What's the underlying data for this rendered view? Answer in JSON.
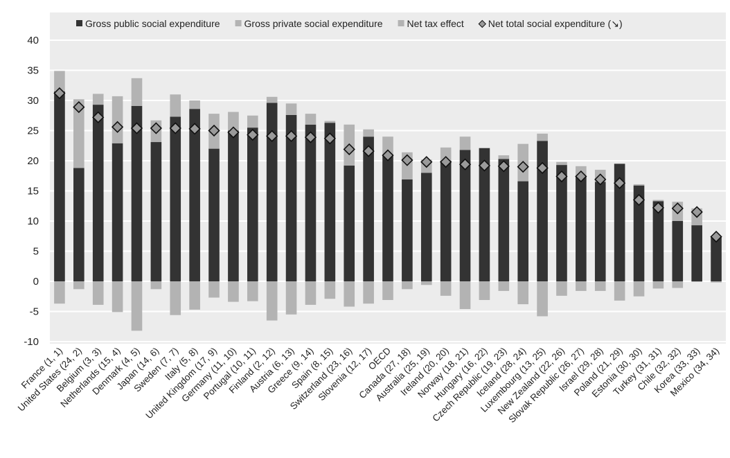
{
  "chart_data": {
    "type": "bar",
    "title": "",
    "xlabel": "",
    "ylabel": "",
    "ylim": [
      -10,
      40
    ],
    "yticks": [
      -10,
      -5,
      0,
      5,
      10,
      15,
      20,
      25,
      30,
      35,
      40
    ],
    "grid": "horizontal",
    "legend_position": "top",
    "categories": [
      "France (1, 1)",
      "United States (24, 2)",
      "Belgium (3, 3)",
      "Netherlands (15, 4)",
      "Denmark (4, 5)",
      "Japan (14, 6)",
      "Sweden (7, 7)",
      "Italy (5, 8)",
      "United Kingdom (17, 9)",
      "Germany (11, 10)",
      "Portugal (10, 11)",
      "Finland (2, 12)",
      "Austria (6, 13)",
      "Greece (9, 14)",
      "Spain (8, 15)",
      "Switzerland (23, 16)",
      "Slovenia (12, 17)",
      "OECD",
      "Canada (27, 18)",
      "Australia (25, 19)",
      "Ireland (20, 20)",
      "Norway (18, 21)",
      "Hungary (16, 22)",
      "Czech Republic (19, 23)",
      "Iceland (28, 24)",
      "Luxembourg (13, 25)",
      "New Zealand (22, 26)",
      "Slovak Republic (26, 27)",
      "Israel (29, 28)",
      "Poland (21, 29)",
      "Estonia (30, 30)",
      "Turkey (31, 31)",
      "Chile (32, 32)",
      "Korea (33, 33)",
      "Mexico (34, 34)"
    ],
    "series": [
      {
        "name": "Gross public social expenditure",
        "color": "#333333",
        "values": [
          31.5,
          18.8,
          29.3,
          22.9,
          29.1,
          23.1,
          27.3,
          28.6,
          22.0,
          25.0,
          25.5,
          29.6,
          27.6,
          26.0,
          26.3,
          19.2,
          24.0,
          21.0,
          16.9,
          18.0,
          20.0,
          21.8,
          22.1,
          20.3,
          16.6,
          23.3,
          19.3,
          17.5,
          16.5,
          19.5,
          15.9,
          13.3,
          10.0,
          9.3,
          7.4
        ]
      },
      {
        "name": "Gross private social expenditure",
        "color": "#b3b3b3",
        "values": [
          3.4,
          11.4,
          1.8,
          7.8,
          4.6,
          3.6,
          3.7,
          1.4,
          5.8,
          3.1,
          2.0,
          1.0,
          1.9,
          1.8,
          0.3,
          6.8,
          1.2,
          3.0,
          4.5,
          2.2,
          2.2,
          2.2,
          0.0,
          0.6,
          6.2,
          1.2,
          0.5,
          1.6,
          2.0,
          0.0,
          0.2,
          0.2,
          3.2,
          2.8,
          0.0
        ]
      },
      {
        "name": "Net tax effect",
        "color": "#b3b3b3",
        "values": [
          -3.7,
          -1.3,
          -3.9,
          -5.1,
          -8.2,
          -1.3,
          -5.6,
          -4.7,
          -2.7,
          -3.4,
          -3.3,
          -6.5,
          -5.5,
          -3.9,
          -2.9,
          -4.2,
          -3.7,
          -3.1,
          -1.3,
          -0.6,
          -2.4,
          -4.6,
          -3.1,
          -1.6,
          -3.8,
          -5.8,
          -2.4,
          -1.6,
          -1.6,
          -3.2,
          -2.5,
          -1.2,
          -1.1,
          -0.1,
          -0.2
        ]
      },
      {
        "name": "Net total social expenditure (↘)",
        "color": "#9a9a9a",
        "marker": "diamond",
        "values": [
          31.2,
          28.9,
          27.2,
          25.6,
          25.4,
          25.4,
          25.4,
          25.3,
          25.0,
          24.7,
          24.3,
          24.1,
          24.1,
          23.9,
          23.7,
          21.9,
          21.6,
          20.9,
          20.1,
          19.8,
          19.8,
          19.4,
          19.2,
          19.1,
          19.0,
          18.8,
          17.4,
          17.4,
          16.9,
          16.3,
          13.5,
          12.2,
          12.1,
          11.5,
          7.4
        ]
      }
    ]
  }
}
